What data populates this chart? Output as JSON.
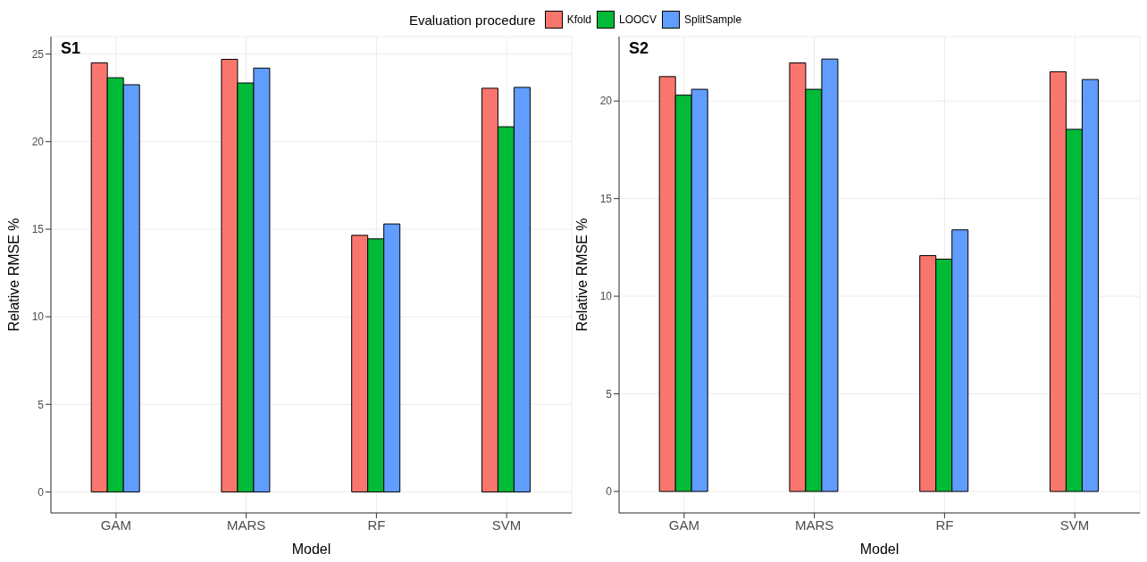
{
  "chart_data": [
    {
      "type": "bar",
      "title": "S1",
      "xlabel": "Model",
      "ylabel": "Relative RMSE %",
      "legend_title": "Evaluation procedure",
      "legend": "top",
      "grid": true,
      "categories": [
        "GAM",
        "MARS",
        "RF",
        "SVM"
      ],
      "ylim": [
        -1.2,
        26
      ],
      "yticks": [
        0,
        5,
        10,
        15,
        20,
        25
      ],
      "series": [
        {
          "name": "Kfold",
          "color": "#f8766d",
          "values": [
            24.5,
            24.7,
            14.65,
            23.05
          ]
        },
        {
          "name": "LOOCV",
          "color": "#00ba38",
          "values": [
            23.65,
            23.35,
            14.45,
            20.85
          ]
        },
        {
          "name": "SplitSample",
          "color": "#619cff",
          "values": [
            23.25,
            24.2,
            15.3,
            23.1
          ]
        }
      ]
    },
    {
      "type": "bar",
      "title": "S2",
      "xlabel": "Model",
      "ylabel": "Relative RMSE %",
      "grid": true,
      "categories": [
        "GAM",
        "MARS",
        "RF",
        "SVM"
      ],
      "ylim": [
        -1.1,
        23.3
      ],
      "yticks": [
        0,
        5,
        10,
        15,
        20
      ],
      "series": [
        {
          "color": "#f8766d",
          "values": [
            21.25,
            21.95,
            12.08,
            21.5
          ]
        },
        {
          "color": "#00ba38",
          "values": [
            20.3,
            20.6,
            11.9,
            18.55
          ]
        },
        {
          "color": "#619cff",
          "values": [
            20.6,
            22.15,
            13.4,
            21.1
          ]
        }
      ]
    }
  ]
}
